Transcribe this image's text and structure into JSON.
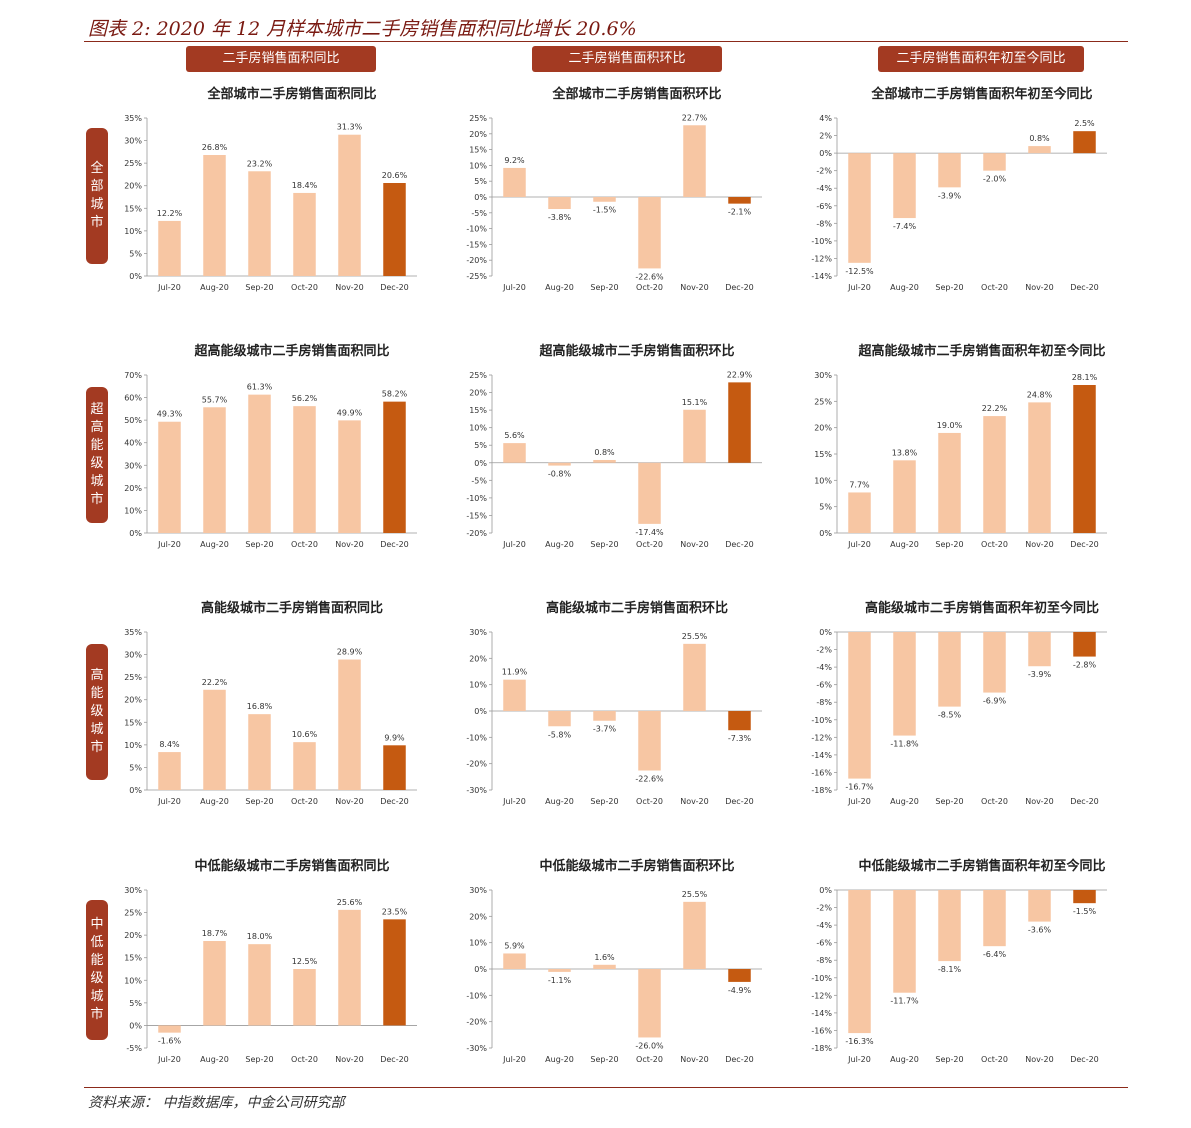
{
  "page": {
    "title": "图表 2: 2020 年 12 月样本城市二手房销售面积同比增长 20.6%",
    "source": "资料来源：  中指数据库，中金公司研究部"
  },
  "columns": [
    "二手房销售面积同比",
    "二手房销售面积环比",
    "二手房销售面积年初至今同比"
  ],
  "rows": [
    "全部城市",
    "超高能级城市",
    "高能级城市",
    "中低能级城市"
  ],
  "colors": {
    "light": "#f7c6a3",
    "dark": "#c55a11",
    "header": "#a33a22"
  },
  "chart_data": [
    {
      "type": "bar",
      "title": "全部城市二手房销售面积同比",
      "categories": [
        "Jul-20",
        "Aug-20",
        "Sep-20",
        "Oct-20",
        "Nov-20",
        "Dec-20"
      ],
      "values": [
        12.2,
        26.8,
        23.2,
        18.4,
        31.3,
        20.6
      ],
      "ylim": [
        0,
        35
      ],
      "ystep": 5,
      "labels": [
        "12.2%",
        "26.8%",
        "23.2%",
        "18.4%",
        "31.3%",
        "20.6%"
      ]
    },
    {
      "type": "bar",
      "title": "全部城市二手房销售面积环比",
      "categories": [
        "Jul-20",
        "Aug-20",
        "Sep-20",
        "Oct-20",
        "Nov-20",
        "Dec-20"
      ],
      "values": [
        9.2,
        -3.8,
        -1.5,
        -22.6,
        22.7,
        -2.1
      ],
      "ylim": [
        -25,
        25
      ],
      "ystep": 5,
      "labels": [
        "9.2%",
        "-3.8%",
        "-1.5%",
        "-22.6%",
        "22.7%",
        "-2.1%"
      ]
    },
    {
      "type": "bar",
      "title": "全部城市二手房销售面积年初至今同比",
      "categories": [
        "Jul-20",
        "Aug-20",
        "Sep-20",
        "Oct-20",
        "Nov-20",
        "Dec-20"
      ],
      "values": [
        -12.5,
        -7.4,
        -3.9,
        -2.0,
        0.8,
        2.5
      ],
      "ylim": [
        -14,
        4
      ],
      "ystep": 2,
      "labels": [
        "-12.5%",
        "-7.4%",
        "-3.9%",
        "-2.0%",
        "0.8%",
        "2.5%"
      ]
    },
    {
      "type": "bar",
      "title": "超高能级城市二手房销售面积同比",
      "categories": [
        "Jul-20",
        "Aug-20",
        "Sep-20",
        "Oct-20",
        "Nov-20",
        "Dec-20"
      ],
      "values": [
        49.3,
        55.7,
        61.3,
        56.2,
        49.9,
        58.2
      ],
      "ylim": [
        0,
        70
      ],
      "ystep": 10,
      "labels": [
        "49.3%",
        "55.7%",
        "61.3%",
        "56.2%",
        "49.9%",
        "58.2%"
      ]
    },
    {
      "type": "bar",
      "title": "超高能级城市二手房销售面积环比",
      "categories": [
        "Jul-20",
        "Aug-20",
        "Sep-20",
        "Oct-20",
        "Nov-20",
        "Dec-20"
      ],
      "values": [
        5.6,
        -0.8,
        0.8,
        -17.4,
        15.1,
        22.9
      ],
      "ylim": [
        -20,
        25
      ],
      "ystep": 5,
      "labels": [
        "5.6%",
        "-0.8%",
        "0.8%",
        "-17.4%",
        "15.1%",
        "22.9%"
      ]
    },
    {
      "type": "bar",
      "title": "超高能级城市二手房销售面积年初至今同比",
      "categories": [
        "Jul-20",
        "Aug-20",
        "Sep-20",
        "Oct-20",
        "Nov-20",
        "Dec-20"
      ],
      "values": [
        7.7,
        13.8,
        19.0,
        22.2,
        24.8,
        28.1
      ],
      "ylim": [
        0,
        30
      ],
      "ystep": 5,
      "labels": [
        "7.7%",
        "13.8%",
        "19.0%",
        "22.2%",
        "24.8%",
        "28.1%"
      ]
    },
    {
      "type": "bar",
      "title": "高能级城市二手房销售面积同比",
      "categories": [
        "Jul-20",
        "Aug-20",
        "Sep-20",
        "Oct-20",
        "Nov-20",
        "Dec-20"
      ],
      "values": [
        8.4,
        22.2,
        16.8,
        10.6,
        28.9,
        9.9
      ],
      "ylim": [
        0,
        35
      ],
      "ystep": 5,
      "labels": [
        "8.4%",
        "22.2%",
        "16.8%",
        "10.6%",
        "28.9%",
        "9.9%"
      ]
    },
    {
      "type": "bar",
      "title": "高能级城市二手房销售面积环比",
      "categories": [
        "Jul-20",
        "Aug-20",
        "Sep-20",
        "Oct-20",
        "Nov-20",
        "Dec-20"
      ],
      "values": [
        11.9,
        -5.8,
        -3.7,
        -22.6,
        25.5,
        -7.3
      ],
      "ylim": [
        -30,
        30
      ],
      "ystep": 10,
      "labels": [
        "11.9%",
        "-5.8%",
        "-3.7%",
        "-22.6%",
        "25.5%",
        "-7.3%"
      ]
    },
    {
      "type": "bar",
      "title": "高能级城市二手房销售面积年初至今同比",
      "categories": [
        "Jul-20",
        "Aug-20",
        "Sep-20",
        "Oct-20",
        "Nov-20",
        "Dec-20"
      ],
      "values": [
        -16.7,
        -11.8,
        -8.5,
        -6.9,
        -3.9,
        -2.8
      ],
      "ylim": [
        -18,
        0
      ],
      "ystep": 2,
      "labels": [
        "-16.7%",
        "-11.8%",
        "-8.5%",
        "-6.9%",
        "-3.9%",
        "-2.8%"
      ]
    },
    {
      "type": "bar",
      "title": "中低能级城市二手房销售面积同比",
      "categories": [
        "Jul-20",
        "Aug-20",
        "Sep-20",
        "Oct-20",
        "Nov-20",
        "Dec-20"
      ],
      "values": [
        -1.6,
        18.7,
        18.0,
        12.5,
        25.6,
        23.5
      ],
      "ylim": [
        -5,
        30
      ],
      "ystep": 5,
      "labels": [
        "-1.6%",
        "18.7%",
        "18.0%",
        "12.5%",
        "25.6%",
        "23.5%"
      ]
    },
    {
      "type": "bar",
      "title": "中低能级城市二手房销售面积环比",
      "categories": [
        "Jul-20",
        "Aug-20",
        "Sep-20",
        "Oct-20",
        "Nov-20",
        "Dec-20"
      ],
      "values": [
        5.9,
        -1.1,
        1.6,
        -26.0,
        25.5,
        -4.9
      ],
      "ylim": [
        -30,
        30
      ],
      "ystep": 10,
      "labels": [
        "5.9%",
        "-1.1%",
        "1.6%",
        "-26.0%",
        "25.5%",
        "-4.9%"
      ]
    },
    {
      "type": "bar",
      "title": "中低能级城市二手房销售面积年初至今同比",
      "categories": [
        "Jul-20",
        "Aug-20",
        "Sep-20",
        "Oct-20",
        "Nov-20",
        "Dec-20"
      ],
      "values": [
        -16.3,
        -11.7,
        -8.1,
        -6.4,
        -3.6,
        -1.5
      ],
      "ylim": [
        -18,
        0
      ],
      "ystep": 2,
      "labels": [
        "-16.3%",
        "-11.7%",
        "-8.1%",
        "-6.4%",
        "-3.6%",
        "-1.5%"
      ]
    }
  ]
}
